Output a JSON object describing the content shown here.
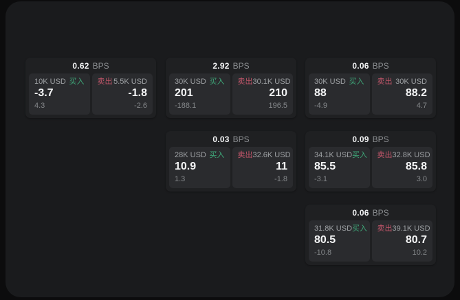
{
  "labels": {
    "bps_unit": "BPS",
    "buy": "买入",
    "sell": "卖出"
  },
  "colors": {
    "background": "#0c0c0d",
    "panel_bg": "#1a1b1d",
    "card_bg": "#1f2022",
    "cell_bg": "#2a2b2e",
    "buy_green": "#3fa97a",
    "sell_red": "#c4566b",
    "value_white": "#f5f6f7",
    "muted_gray": "#9ea1a4"
  },
  "cards": [
    {
      "bps": "0.62",
      "buy": {
        "amount": "10K USD",
        "price": "-3.7",
        "delta": "4.3"
      },
      "sell": {
        "amount": "5.5K USD",
        "price": "-1.8",
        "delta": "-2.6"
      }
    },
    {
      "bps": "2.92",
      "buy": {
        "amount": "30K USD",
        "price": "201",
        "delta": "-188.1"
      },
      "sell": {
        "amount": "30.1K USD",
        "price": "210",
        "delta": "196.5"
      }
    },
    {
      "bps": "0.06",
      "buy": {
        "amount": "30K USD",
        "price": "88",
        "delta": "-4.9"
      },
      "sell": {
        "amount": "30K USD",
        "price": "88.2",
        "delta": "4.7"
      }
    },
    {
      "bps": "0.03",
      "buy": {
        "amount": "28K USD",
        "price": "10.9",
        "delta": "1.3"
      },
      "sell": {
        "amount": "32.6K USD",
        "price": "11",
        "delta": "-1.8"
      }
    },
    {
      "bps": "0.09",
      "buy": {
        "amount": "34.1K USD",
        "price": "85.5",
        "delta": "-3.1"
      },
      "sell": {
        "amount": "32.8K USD",
        "price": "85.8",
        "delta": "3.0"
      }
    },
    {
      "bps": "0.06",
      "buy": {
        "amount": "31.8K USD",
        "price": "80.5",
        "delta": "-10.8"
      },
      "sell": {
        "amount": "39.1K USD",
        "price": "80.7",
        "delta": "10.2"
      }
    }
  ]
}
